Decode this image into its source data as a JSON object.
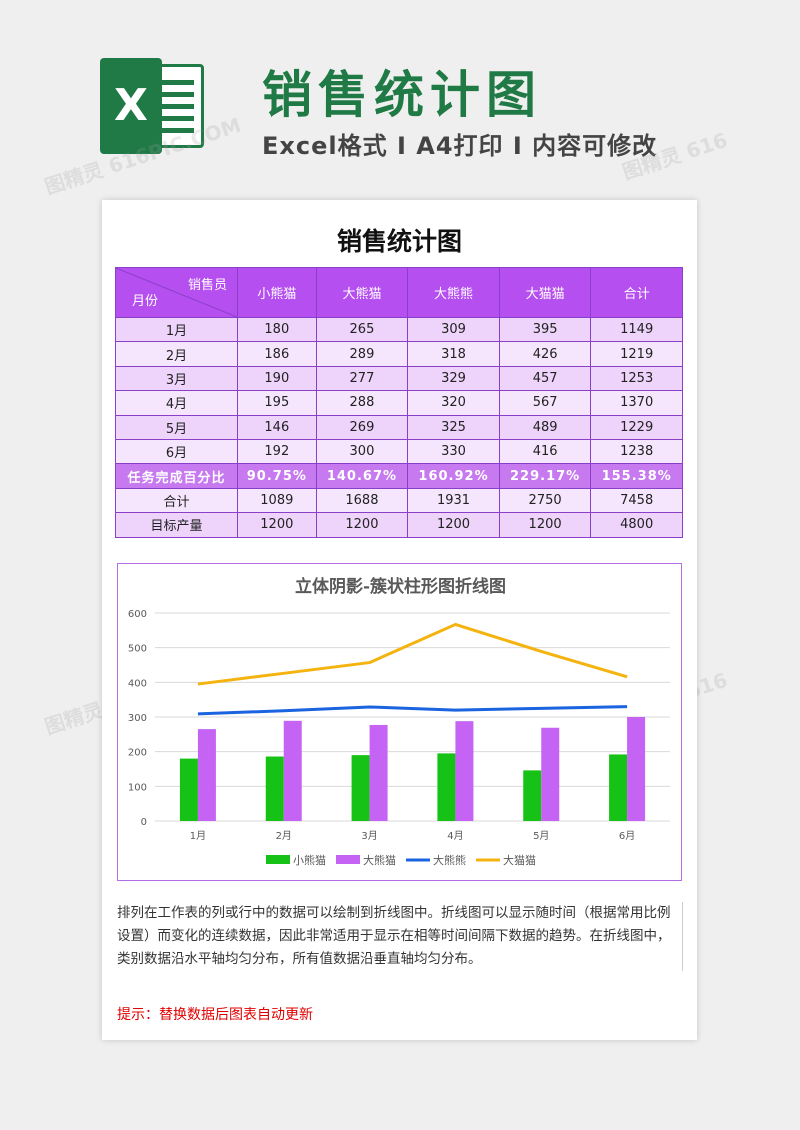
{
  "header": {
    "logo_letter": "X",
    "title": "销售统计图",
    "subtitle": "Excel格式 I A4打印 I 内容可修改"
  },
  "sheet": {
    "title": "销售统计图",
    "table": {
      "corner_top": "销售员",
      "corner_bottom": "月份",
      "columns": [
        "小熊猫",
        "大熊猫",
        "大熊熊",
        "大猫猫",
        "合计"
      ],
      "rows": [
        {
          "label": "1月",
          "cells": [
            "180",
            "265",
            "309",
            "395",
            "1149"
          ]
        },
        {
          "label": "2月",
          "cells": [
            "186",
            "289",
            "318",
            "426",
            "1219"
          ]
        },
        {
          "label": "3月",
          "cells": [
            "190",
            "277",
            "329",
            "457",
            "1253"
          ]
        },
        {
          "label": "4月",
          "cells": [
            "195",
            "288",
            "320",
            "567",
            "1370"
          ]
        },
        {
          "label": "5月",
          "cells": [
            "146",
            "269",
            "325",
            "489",
            "1229"
          ]
        },
        {
          "label": "6月",
          "cells": [
            "192",
            "300",
            "330",
            "416",
            "1238"
          ]
        }
      ],
      "pct_row": {
        "label": "任务完成百分比",
        "cells": [
          "90.75%",
          "140.67%",
          "160.92%",
          "229.17%",
          "155.38%"
        ]
      },
      "total_row": {
        "label": "合计",
        "cells": [
          "1089",
          "1688",
          "1931",
          "2750",
          "7458"
        ]
      },
      "target_row": {
        "label": "目标产量",
        "cells": [
          "1200",
          "1200",
          "1200",
          "1200",
          "4800"
        ]
      }
    },
    "description": "排列在工作表的列或行中的数据可以绘制到折线图中。折线图可以显示随时间（根据常用比例设置）而变化的连续数据，因此非常适用于显示在相等时间间隔下数据的趋势。在折线图中，类别数据沿水平轴均匀分布，所有值数据沿垂直轴均匀分布。",
    "tip": "提示：替换数据后图表自动更新"
  },
  "chart_data": {
    "type": "bar",
    "title": "立体阴影-簇状柱形图折线图",
    "categories": [
      "1月",
      "2月",
      "3月",
      "4月",
      "5月",
      "6月"
    ],
    "ylim": [
      0,
      600
    ],
    "yticks": [
      "0",
      "100",
      "200",
      "300",
      "400",
      "500",
      "600"
    ],
    "grid": true,
    "legend_position": "bottom",
    "series": [
      {
        "name": "小熊猫",
        "kind": "bar",
        "color": "#16c216",
        "values": [
          180,
          186,
          190,
          195,
          146,
          192
        ]
      },
      {
        "name": "大熊猫",
        "kind": "bar",
        "color": "#c563f5",
        "values": [
          265,
          289,
          277,
          288,
          269,
          300
        ]
      },
      {
        "name": "大熊熊",
        "kind": "line",
        "color": "#1a64e0",
        "values": [
          309,
          318,
          329,
          320,
          325,
          330
        ]
      },
      {
        "name": "大猫猫",
        "kind": "line",
        "color": "#f4b30f",
        "values": [
          395,
          426,
          457,
          567,
          489,
          416
        ]
      }
    ]
  }
}
